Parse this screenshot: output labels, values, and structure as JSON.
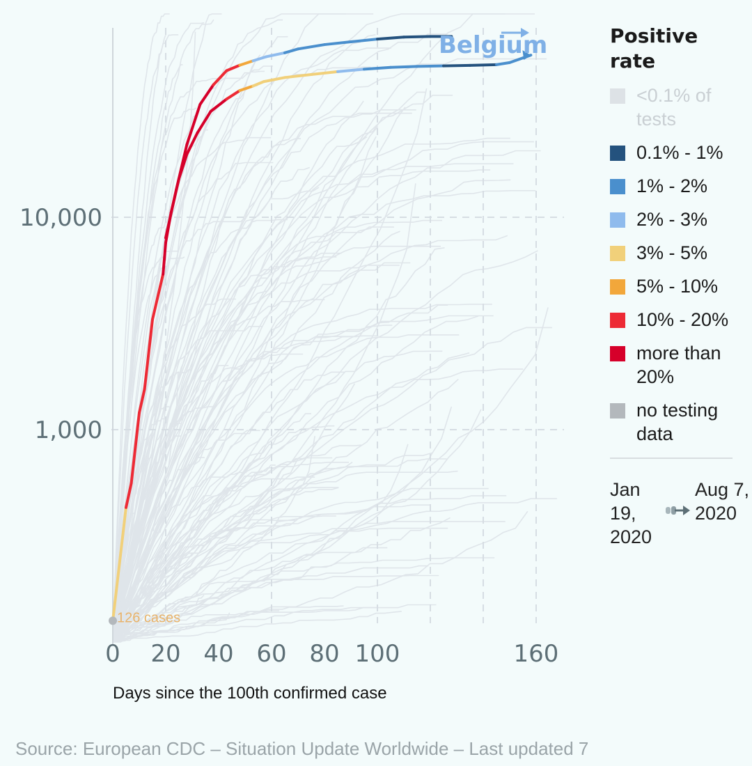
{
  "legend": {
    "title": "Positive rate",
    "items": [
      {
        "label": "<0.1% of tests",
        "color": "#dde2e6",
        "muted": true
      },
      {
        "label": "0.1% - 1%",
        "color": "#24527e"
      },
      {
        "label": "1% - 2%",
        "color": "#4a8fcd"
      },
      {
        "label": "2% - 3%",
        "color": "#8fbbed"
      },
      {
        "label": "3% - 5%",
        "color": "#f1d07a"
      },
      {
        "label": "5% - 10%",
        "color": "#f2a73b"
      },
      {
        "label": "10% - 20%",
        "color": "#ed2a35"
      },
      {
        "label": "more than 20%",
        "color": "#d6002a"
      },
      {
        "label": "no testing data",
        "color": "#b3b8bc"
      }
    ]
  },
  "timeline": {
    "start": "Jan 19, 2020",
    "end": "Aug 7, 2020",
    "play_icon": "play-icon"
  },
  "xaxis_title": "Days since the 100th confirmed case",
  "source": "Source: European CDC – Situation Update Worldwide – Last updated 7",
  "chart_data": {
    "type": "line",
    "scale_y": "log",
    "xlabel": "Days since the 100th confirmed case",
    "ylabel": "",
    "x_ticks": [
      0,
      20,
      40,
      60,
      80,
      100,
      160
    ],
    "y_ticks": [
      {
        "value": 1000,
        "label": "1,000"
      },
      {
        "value": 10000,
        "label": "10,000"
      }
    ],
    "xlim": [
      0,
      170
    ],
    "grid": true,
    "legend_position": "right",
    "annotations": [
      {
        "text": "126 cases",
        "x": 0,
        "y": 126,
        "color": "#e9b36a"
      }
    ],
    "highlight": {
      "name": "Belgium",
      "label_color": "#7fb0e6",
      "points": [
        [
          0,
          126,
          "#b3b8bc"
        ],
        [
          5,
          430,
          "#f1d07a"
        ],
        [
          7,
          560,
          "#ed2a35"
        ],
        [
          10,
          1200,
          "#ed2a35"
        ],
        [
          12,
          1550,
          "#ed2a35"
        ],
        [
          15,
          3300,
          "#ed2a35"
        ],
        [
          19,
          5400,
          "#ed2a35"
        ],
        [
          20,
          7600,
          "#d6002a"
        ],
        [
          22,
          10500,
          "#d6002a"
        ],
        [
          25,
          15200,
          "#d6002a"
        ],
        [
          28,
          19800,
          "#d6002a"
        ],
        [
          32,
          25000,
          "#d6002a"
        ],
        [
          37,
          31500,
          "#d6002a"
        ],
        [
          43,
          36000,
          "#d6002a"
        ],
        [
          48,
          39500,
          "#ed2a35"
        ],
        [
          53,
          41500,
          "#f2a73b"
        ],
        [
          57,
          43500,
          "#f1d07a"
        ],
        [
          65,
          45500,
          "#f1d07a"
        ],
        [
          75,
          47000,
          "#f1d07a"
        ],
        [
          85,
          48500,
          "#f1d07a"
        ],
        [
          95,
          49800,
          "#8fbbed"
        ],
        [
          105,
          50800,
          "#4a8fcd"
        ],
        [
          115,
          51300,
          "#4a8fcd"
        ],
        [
          125,
          51600,
          "#4a8fcd"
        ],
        [
          135,
          51900,
          "#24527e"
        ],
        [
          145,
          52300,
          "#24527e"
        ],
        [
          150,
          53500,
          "#4a8fcd"
        ],
        [
          158,
          58000,
          "#4a8fcd"
        ]
      ],
      "points_deaths_like": [
        [
          20,
          8000,
          "#d6002a"
        ],
        [
          24,
          13500,
          "#d6002a"
        ],
        [
          28,
          22000,
          "#d6002a"
        ],
        [
          33,
          34000,
          "#d6002a"
        ],
        [
          38,
          42000,
          "#d6002a"
        ],
        [
          43,
          49000,
          "#ed2a35"
        ],
        [
          48,
          52000,
          "#ed2a35"
        ],
        [
          53,
          54500,
          "#f2a73b"
        ],
        [
          58,
          57000,
          "#8fbbed"
        ],
        [
          65,
          59500,
          "#8fbbed"
        ],
        [
          70,
          62000,
          "#4a8fcd"
        ],
        [
          80,
          65000,
          "#4a8fcd"
        ],
        [
          90,
          67000,
          "#4a8fcd"
        ],
        [
          100,
          69000,
          "#4a8fcd"
        ],
        [
          110,
          70500,
          "#24527e"
        ],
        [
          120,
          71000,
          "#24527e"
        ],
        [
          128,
          71000,
          "#24527e"
        ]
      ]
    },
    "background_series_count": 140
  },
  "colors": {
    "background": "#f3fbfb",
    "grid": "#d6dde3",
    "axis_text": "#5d6f76",
    "bg_line": "#dfe5ea"
  }
}
